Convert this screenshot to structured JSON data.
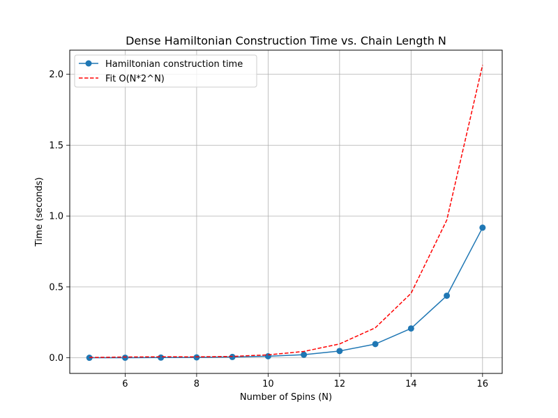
{
  "chart_data": {
    "type": "line",
    "title": "Dense Hamiltonian Construction Time vs. Chain Length N",
    "xlabel": "Number of Spins (N)",
    "ylabel": "Time (seconds)",
    "xlim": [
      4.45,
      16.55
    ],
    "ylim": [
      -0.11,
      2.17
    ],
    "xticks": [
      6,
      8,
      10,
      12,
      14,
      16
    ],
    "xtick_labels": [
      "6",
      "8",
      "10",
      "12",
      "14",
      "16"
    ],
    "yticks": [
      0.0,
      0.5,
      1.0,
      1.5,
      2.0
    ],
    "ytick_labels": [
      "0.0",
      "0.5",
      "1.0",
      "1.5",
      "2.0"
    ],
    "grid": true,
    "legend_position": "top-left",
    "x": [
      5,
      6,
      7,
      8,
      9,
      10,
      11,
      12,
      13,
      14,
      15,
      16
    ],
    "series": [
      {
        "name": "Hamiltonian construction time",
        "color": "#1f77b4",
        "style": "solid",
        "marker": "circle",
        "values": [
          0.0003,
          0.0008,
          0.0016,
          0.003,
          0.006,
          0.011,
          0.022,
          0.048,
          0.097,
          0.207,
          0.438,
          0.918
        ]
      },
      {
        "name": "Fit O(N*2^N)",
        "color": "#ff0000",
        "style": "dashed",
        "marker": "none",
        "values": [
          0.0025,
          0.0055,
          0.0072,
          0.0069,
          0.0099,
          0.021,
          0.045,
          0.098,
          0.212,
          0.455,
          0.972,
          2.065
        ]
      }
    ]
  }
}
